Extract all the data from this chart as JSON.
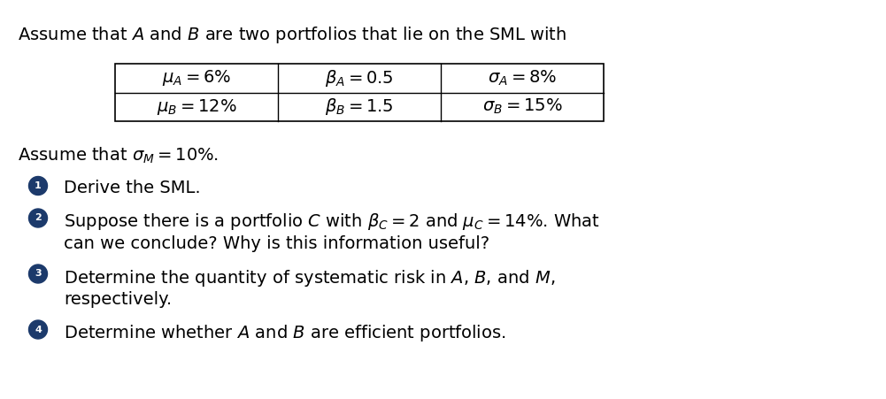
{
  "title_line": "Assume that $A$ and $B$ are two portfolios that lie on the SML with",
  "table_row1": [
    "$\\mu_A = 6\\%$",
    "$\\beta_A = 0.5$",
    "$\\sigma_A = 8\\%$"
  ],
  "table_row2": [
    "$\\mu_B = 12\\%$",
    "$\\beta_B = 1.5$",
    "$\\sigma_B = 15\\%$"
  ],
  "assume_line": "Assume that $\\sigma_M = 10\\%$.",
  "item1_line1": "Derive the SML.",
  "item2_line1": "Suppose there is a portfolio $C$ with $\\beta_C = 2$ and $\\mu_C = 14\\%$. What",
  "item2_line2": "can we conclude? Why is this information useful?",
  "item3_line1": "Determine the quantity of systematic risk in $A$, $B$, and $M$,",
  "item3_line2": "respectively.",
  "item4_line1": "Determine whether $A$ and $B$ are efficient portfolios.",
  "bg_color": "#ffffff",
  "text_color": "#000000",
  "bullet_color": "#1c3a6b",
  "font_size": 14,
  "table_font_size": 14,
  "fig_width": 10.01,
  "fig_height": 4.51,
  "dpi": 100
}
